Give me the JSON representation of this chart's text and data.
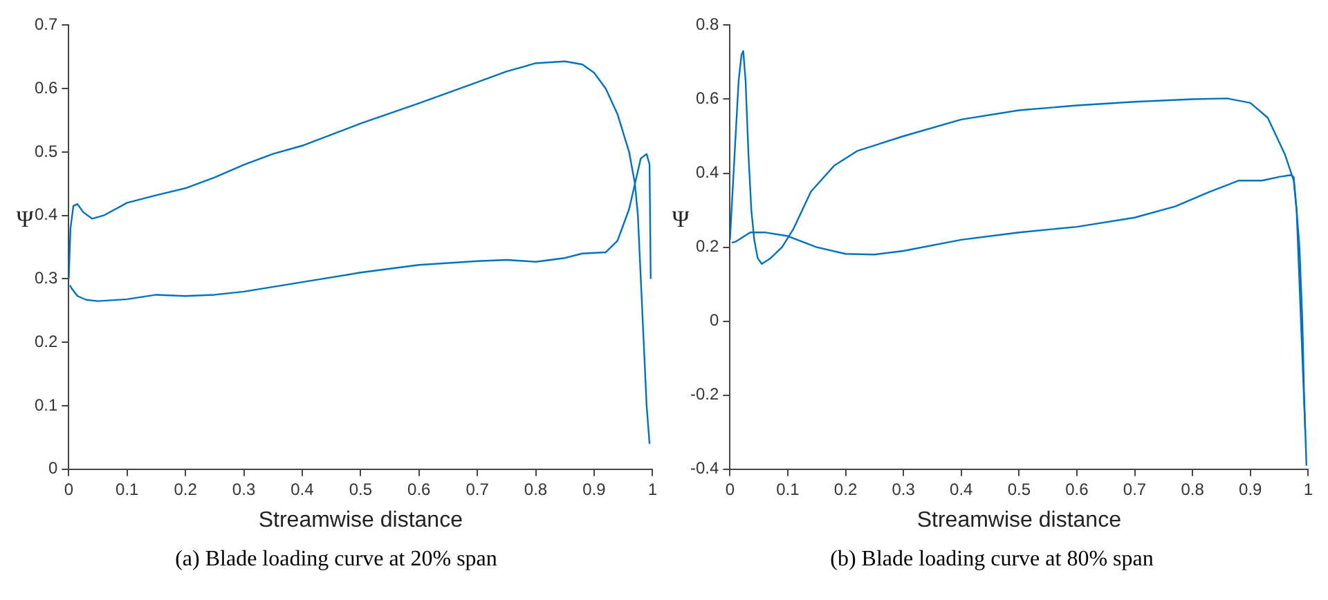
{
  "chart_data": [
    {
      "type": "line",
      "xlabel": "Streamwise distance",
      "ylabel": "Ψ",
      "annotations": [
        "(a) Blade loading curve at 20% span"
      ],
      "xlim": [
        0,
        1
      ],
      "ylim": [
        0,
        0.7
      ],
      "xticks": [
        0,
        0.1,
        0.2,
        0.3,
        0.4,
        0.5,
        0.6,
        0.7,
        0.8,
        0.9,
        1
      ],
      "yticks": [
        0,
        0.1,
        0.2,
        0.3,
        0.4,
        0.5,
        0.6,
        0.7
      ],
      "grid": false,
      "legend": false,
      "marker": "none",
      "line_style": "solid",
      "series": [
        {
          "color": "#0072bd",
          "x": [
            0,
            0.003,
            0.008,
            0.015,
            0.025,
            0.04,
            0.06,
            0.1,
            0.15,
            0.2,
            0.25,
            0.3,
            0.35,
            0.4,
            0.5,
            0.6,
            0.7,
            0.75,
            0.8,
            0.85,
            0.88,
            0.9,
            0.92,
            0.94,
            0.96,
            0.97,
            0.975,
            0.98,
            0.985,
            0.99,
            0.995
          ],
          "values": [
            0.3,
            0.38,
            0.415,
            0.418,
            0.405,
            0.395,
            0.4,
            0.42,
            0.432,
            0.443,
            0.46,
            0.48,
            0.497,
            0.51,
            0.545,
            0.577,
            0.61,
            0.627,
            0.64,
            0.643,
            0.638,
            0.625,
            0.6,
            0.56,
            0.5,
            0.45,
            0.4,
            0.3,
            0.2,
            0.1,
            0.04
          ]
        },
        {
          "color": "#0072bd",
          "x": [
            0.002,
            0.005,
            0.015,
            0.03,
            0.05,
            0.1,
            0.15,
            0.2,
            0.25,
            0.3,
            0.4,
            0.5,
            0.6,
            0.7,
            0.75,
            0.8,
            0.85,
            0.88,
            0.92,
            0.94,
            0.96,
            0.97,
            0.98,
            0.99,
            0.995,
            0.997
          ],
          "values": [
            0.29,
            0.285,
            0.273,
            0.267,
            0.265,
            0.268,
            0.275,
            0.273,
            0.275,
            0.28,
            0.295,
            0.31,
            0.322,
            0.328,
            0.33,
            0.327,
            0.333,
            0.34,
            0.342,
            0.36,
            0.41,
            0.45,
            0.49,
            0.497,
            0.48,
            0.3
          ]
        }
      ]
    },
    {
      "type": "line",
      "xlabel": "Streamwise distance",
      "ylabel": "Ψ",
      "annotations": [
        "(b) Blade loading curve at 80% span"
      ],
      "xlim": [
        0,
        1
      ],
      "ylim": [
        -0.4,
        0.8
      ],
      "xticks": [
        0,
        0.1,
        0.2,
        0.3,
        0.4,
        0.5,
        0.6,
        0.7,
        0.8,
        0.9,
        1
      ],
      "yticks": [
        -0.4,
        -0.2,
        0,
        0.2,
        0.4,
        0.6,
        0.8
      ],
      "grid": false,
      "legend": false,
      "marker": "none",
      "line_style": "solid",
      "series": [
        {
          "color": "#0072bd",
          "x": [
            0,
            0.008,
            0.015,
            0.02,
            0.023,
            0.027,
            0.032,
            0.037,
            0.042,
            0.048,
            0.055,
            0.07,
            0.09,
            0.11,
            0.14,
            0.18,
            0.22,
            0.3,
            0.4,
            0.5,
            0.6,
            0.7,
            0.8,
            0.86,
            0.9,
            0.93,
            0.96,
            0.975,
            0.98,
            0.985,
            0.99,
            0.993,
            0.997
          ],
          "values": [
            0.22,
            0.45,
            0.65,
            0.72,
            0.73,
            0.65,
            0.45,
            0.3,
            0.22,
            0.17,
            0.155,
            0.17,
            0.2,
            0.25,
            0.35,
            0.42,
            0.46,
            0.5,
            0.545,
            0.57,
            0.583,
            0.593,
            0.6,
            0.602,
            0.59,
            0.55,
            0.45,
            0.38,
            0.3,
            0.2,
            0,
            -0.2,
            -0.39
          ]
        },
        {
          "color": "#0072bd",
          "x": [
            0.003,
            0.01,
            0.02,
            0.035,
            0.06,
            0.1,
            0.15,
            0.2,
            0.25,
            0.3,
            0.4,
            0.5,
            0.6,
            0.7,
            0.77,
            0.83,
            0.88,
            0.92,
            0.95,
            0.97,
            0.975,
            0.98,
            0.985,
            0.99,
            0.995
          ],
          "values": [
            0.212,
            0.215,
            0.225,
            0.24,
            0.24,
            0.23,
            0.2,
            0.182,
            0.18,
            0.19,
            0.22,
            0.24,
            0.255,
            0.28,
            0.31,
            0.35,
            0.38,
            0.38,
            0.39,
            0.395,
            0.39,
            0.3,
            0.1,
            -0.1,
            -0.3
          ]
        }
      ]
    }
  ]
}
